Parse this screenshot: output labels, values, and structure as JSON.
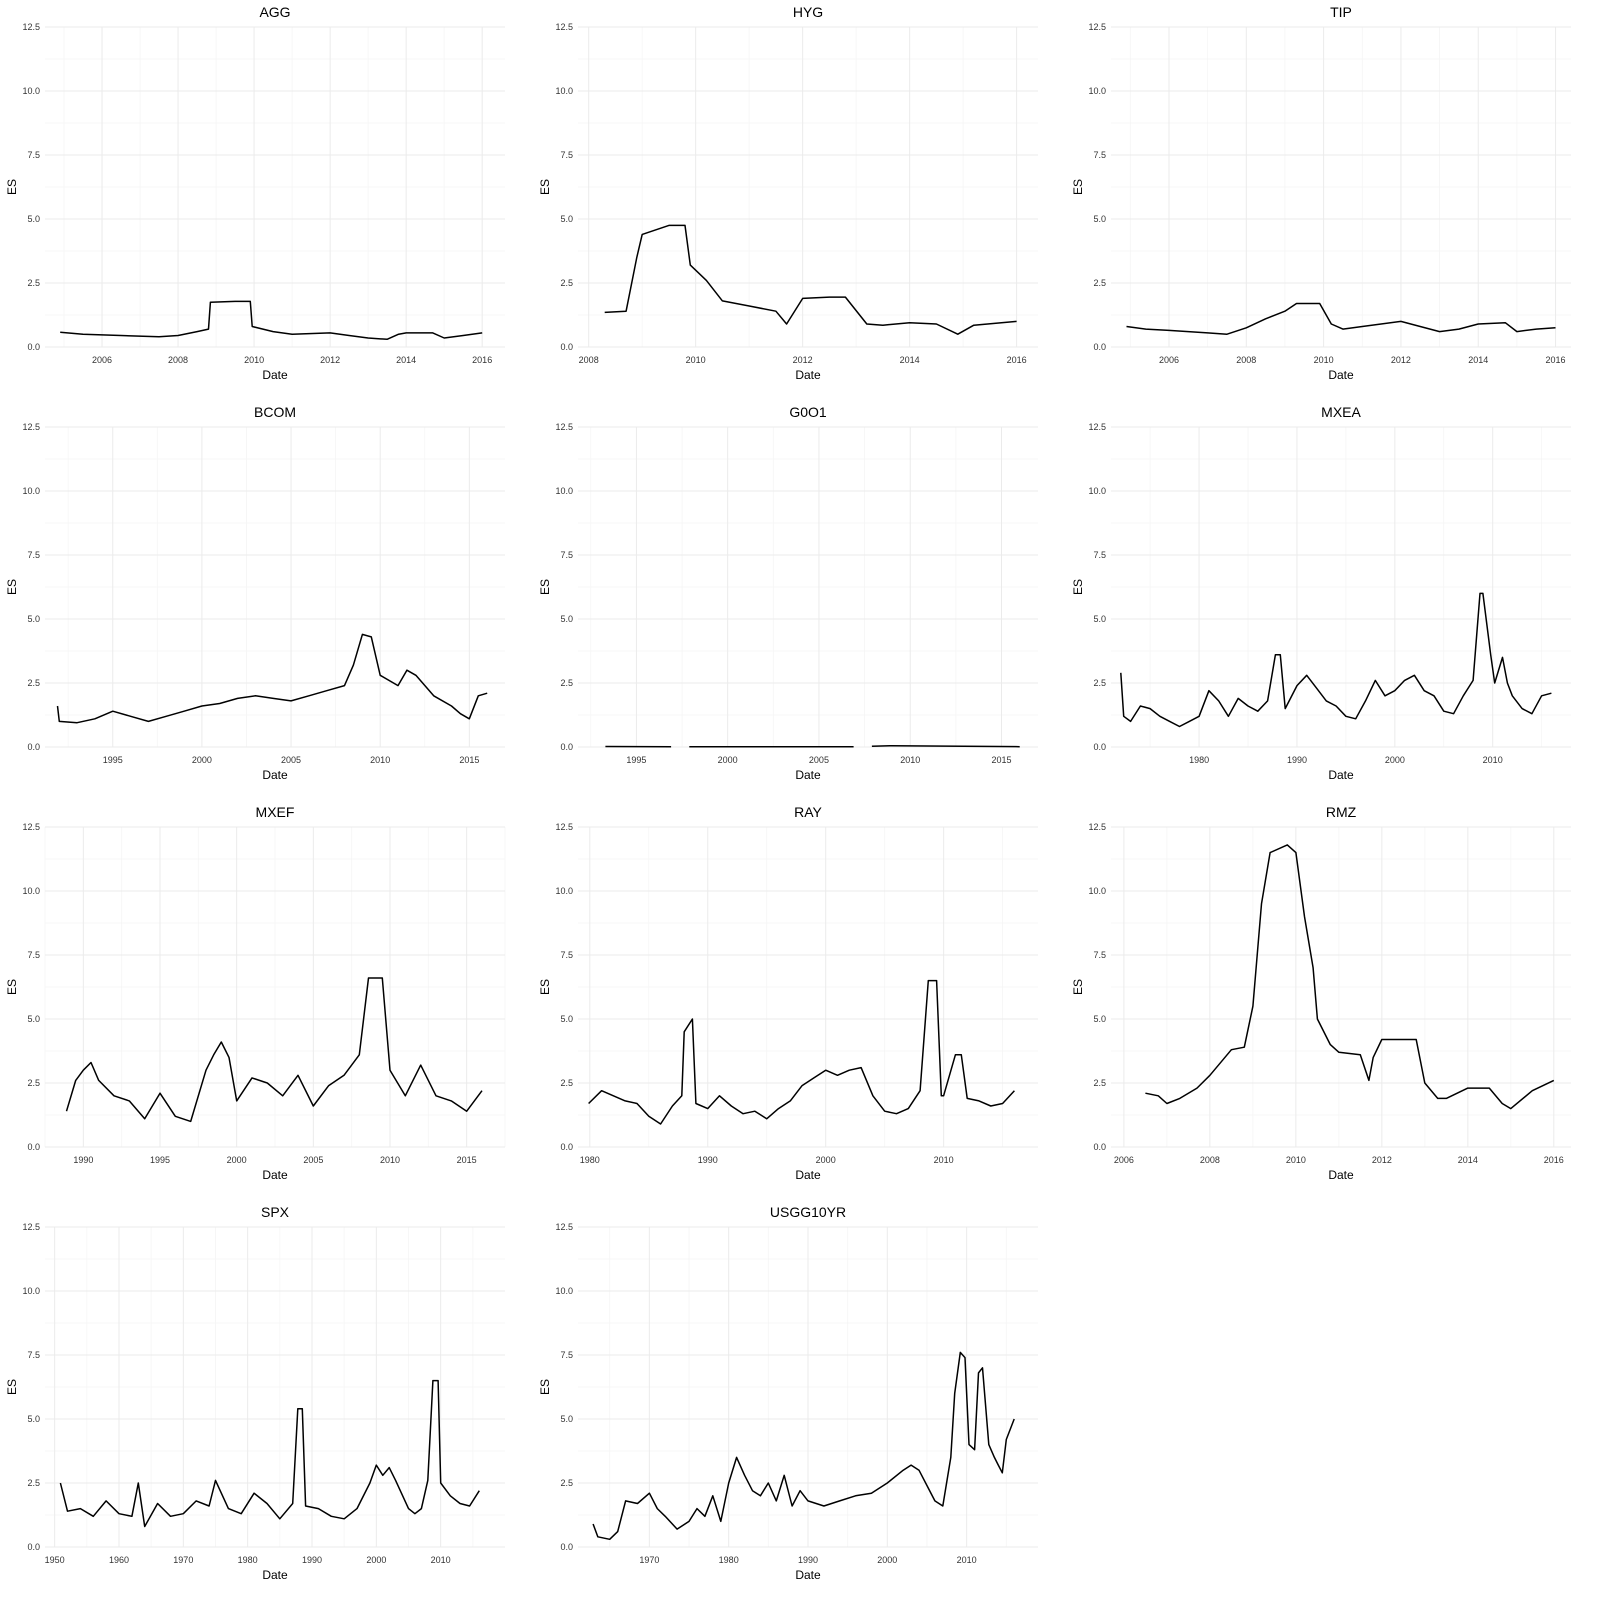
{
  "chart_data": [
    {
      "type": "line",
      "title": "AGG",
      "xlabel": "Date",
      "ylabel": "ES",
      "xlim": [
        2004.5,
        2016.6
      ],
      "ylim": [
        0,
        12.5
      ],
      "xticks": [
        2006,
        2008,
        2010,
        2012,
        2014,
        2016
      ],
      "yticks": [
        0.0,
        2.5,
        5.0,
        7.5,
        10.0,
        12.5
      ],
      "series": [
        {
          "x": [
            2004.9,
            2005.5,
            2006.5,
            2007.5,
            2008.0,
            2008.5,
            2008.8,
            2008.85,
            2009.5,
            2009.9,
            2009.95,
            2010.5,
            2011.0,
            2012.0,
            2012.5,
            2013.0,
            2013.5,
            2013.8,
            2014.0,
            2014.7,
            2015.0,
            2015.5,
            2016.0
          ],
          "y": [
            0.58,
            0.5,
            0.45,
            0.4,
            0.45,
            0.6,
            0.7,
            1.75,
            1.78,
            1.78,
            0.8,
            0.6,
            0.5,
            0.55,
            0.45,
            0.35,
            0.3,
            0.5,
            0.55,
            0.55,
            0.35,
            0.45,
            0.55
          ]
        }
      ]
    },
    {
      "type": "line",
      "title": "HYG",
      "xlabel": "Date",
      "ylabel": "ES",
      "xlim": [
        2007.8,
        2016.4
      ],
      "ylim": [
        0,
        12.5
      ],
      "xticks": [
        2008,
        2010,
        2012,
        2014,
        2016
      ],
      "yticks": [
        0.0,
        2.5,
        5.0,
        7.5,
        10.0,
        12.5
      ],
      "series": [
        {
          "x": [
            2008.3,
            2008.7,
            2008.9,
            2009.0,
            2009.5,
            2009.8,
            2009.9,
            2010.2,
            2010.5,
            2011.0,
            2011.5,
            2011.7,
            2012.0,
            2012.5,
            2012.8,
            2013.2,
            2013.5,
            2014.0,
            2014.5,
            2014.9,
            2015.2,
            2016.0
          ],
          "y": [
            1.35,
            1.4,
            3.5,
            4.4,
            4.75,
            4.75,
            3.2,
            2.6,
            1.8,
            1.6,
            1.4,
            0.9,
            1.9,
            1.95,
            1.95,
            0.9,
            0.85,
            0.95,
            0.9,
            0.5,
            0.85,
            1.0
          ]
        }
      ]
    },
    {
      "type": "line",
      "title": "TIP",
      "xlabel": "Date",
      "ylabel": "ES",
      "xlim": [
        2004.5,
        2016.4
      ],
      "ylim": [
        0,
        12.5
      ],
      "xticks": [
        2006,
        2008,
        2010,
        2012,
        2014,
        2016
      ],
      "yticks": [
        0.0,
        2.5,
        5.0,
        7.5,
        10.0,
        12.5
      ],
      "series": [
        {
          "x": [
            2004.9,
            2005.4,
            2006.0,
            2007.0,
            2007.5,
            2008.0,
            2008.5,
            2009.0,
            2009.3,
            2009.9,
            2010.2,
            2010.5,
            2011.0,
            2012.0,
            2012.5,
            2013.0,
            2013.5,
            2014.0,
            2014.7,
            2015.0,
            2015.5,
            2016.0
          ],
          "y": [
            0.8,
            0.7,
            0.65,
            0.55,
            0.5,
            0.75,
            1.1,
            1.4,
            1.7,
            1.7,
            0.9,
            0.7,
            0.8,
            1.0,
            0.8,
            0.6,
            0.7,
            0.9,
            0.95,
            0.6,
            0.7,
            0.75
          ]
        }
      ]
    },
    {
      "type": "line",
      "title": "BCOM",
      "xlabel": "Date",
      "ylabel": "ES",
      "xlim": [
        1991.2,
        2017.0
      ],
      "ylim": [
        0,
        12.5
      ],
      "xticks": [
        1995,
        2000,
        2005,
        2010,
        2015
      ],
      "yticks": [
        0.0,
        2.5,
        5.0,
        7.5,
        10.0,
        12.5
      ],
      "series": [
        {
          "x": [
            1991.9,
            1992.0,
            1993.0,
            1994.0,
            1995.0,
            1996.0,
            1997.0,
            1998.0,
            1999.0,
            2000.0,
            2001.0,
            2002.0,
            2003.0,
            2004.0,
            2005.0,
            2006.0,
            2007.0,
            2008.0,
            2008.5,
            2009.0,
            2009.5,
            2010.0,
            2011.0,
            2011.5,
            2012.0,
            2013.0,
            2014.0,
            2014.5,
            2015.0,
            2015.5,
            2016.0
          ],
          "y": [
            1.6,
            1.0,
            0.95,
            1.1,
            1.4,
            1.2,
            1.0,
            1.2,
            1.4,
            1.6,
            1.7,
            1.9,
            2.0,
            1.9,
            1.8,
            2.0,
            2.2,
            2.4,
            3.2,
            4.4,
            4.3,
            2.8,
            2.4,
            3.0,
            2.8,
            2.0,
            1.6,
            1.3,
            1.1,
            2.0,
            2.1
          ]
        }
      ]
    },
    {
      "type": "line",
      "title": "G0O1",
      "xlabel": "Date",
      "ylabel": "ES",
      "xlim": [
        1991.8,
        2017.0
      ],
      "ylim": [
        0,
        12.5
      ],
      "xticks": [
        1995,
        2000,
        2005,
        2010,
        2015
      ],
      "yticks": [
        0.0,
        2.5,
        5.0,
        7.5,
        10.0,
        12.5
      ],
      "series": [
        {
          "x": [
            1993.3,
            1996.9,
            null,
            1997.9,
            2006.9,
            null,
            2007.9,
            2009.0,
            2016.0
          ],
          "y": [
            0.02,
            0.01,
            null,
            0.01,
            0.01,
            null,
            0.03,
            0.05,
            0.01
          ]
        }
      ]
    },
    {
      "type": "line",
      "title": "MXEA",
      "xlabel": "Date",
      "ylabel": "ES",
      "xlim": [
        1971.0,
        2018.0
      ],
      "ylim": [
        0,
        12.5
      ],
      "xticks": [
        1980,
        1990,
        2000,
        2010
      ],
      "yticks": [
        0.0,
        2.5,
        5.0,
        7.5,
        10.0,
        12.5
      ],
      "series": [
        {
          "x": [
            1972.0,
            1972.3,
            1973.0,
            1974.0,
            1975.0,
            1976.0,
            1977.0,
            1978.0,
            1979.0,
            1980.0,
            1981.0,
            1982.0,
            1983.0,
            1984.0,
            1985.0,
            1986.0,
            1987.0,
            1987.8,
            1988.3,
            1988.8,
            1990.0,
            1991.0,
            1992.0,
            1993.0,
            1994.0,
            1995.0,
            1996.0,
            1997.0,
            1998.0,
            1999.0,
            2000.0,
            2001.0,
            2002.0,
            2003.0,
            2004.0,
            2005.0,
            2006.0,
            2007.0,
            2008.0,
            2008.7,
            2009.0,
            2009.8,
            2010.2,
            2011.0,
            2011.5,
            2012.0,
            2013.0,
            2014.0,
            2015.0,
            2016.0
          ],
          "y": [
            2.9,
            1.2,
            1.0,
            1.6,
            1.5,
            1.2,
            1.0,
            0.8,
            1.0,
            1.2,
            2.2,
            1.8,
            1.2,
            1.9,
            1.6,
            1.4,
            1.8,
            3.6,
            3.6,
            1.5,
            2.4,
            2.8,
            2.3,
            1.8,
            1.6,
            1.2,
            1.1,
            1.8,
            2.6,
            2.0,
            2.2,
            2.6,
            2.8,
            2.2,
            2.0,
            1.4,
            1.3,
            2.0,
            2.6,
            6.0,
            6.0,
            3.6,
            2.5,
            3.5,
            2.5,
            2.0,
            1.5,
            1.3,
            2.0,
            2.1
          ]
        }
      ]
    },
    {
      "type": "line",
      "title": "MXEF",
      "xlabel": "Date",
      "ylabel": "ES",
      "xlim": [
        1987.5,
        2017.5
      ],
      "ylim": [
        0,
        12.5
      ],
      "xticks": [
        1990,
        1995,
        2000,
        2005,
        2010,
        2015
      ],
      "yticks": [
        0.0,
        2.5,
        5.0,
        7.5,
        10.0,
        12.5
      ],
      "series": [
        {
          "x": [
            1988.9,
            1989.5,
            1990.0,
            1990.5,
            1991.0,
            1992.0,
            1993.0,
            1994.0,
            1995.0,
            1996.0,
            1997.0,
            1998.0,
            1998.5,
            1999.0,
            1999.5,
            2000.0,
            2001.0,
            2002.0,
            2003.0,
            2004.0,
            2005.0,
            2006.0,
            2007.0,
            2008.0,
            2008.6,
            2009.5,
            2010.0,
            2011.0,
            2012.0,
            2013.0,
            2014.0,
            2015.0,
            2016.0
          ],
          "y": [
            1.4,
            2.6,
            3.0,
            3.3,
            2.6,
            2.0,
            1.8,
            1.1,
            2.1,
            1.2,
            1.0,
            3.0,
            3.6,
            4.1,
            3.5,
            1.8,
            2.7,
            2.5,
            2.0,
            2.8,
            1.6,
            2.4,
            2.8,
            3.6,
            6.6,
            6.6,
            3.0,
            2.0,
            3.2,
            2.0,
            1.8,
            1.4,
            2.2
          ]
        }
      ]
    },
    {
      "type": "line",
      "title": "RAY",
      "xlabel": "Date",
      "ylabel": "ES",
      "xlim": [
        1979.0,
        2018.0
      ],
      "ylim": [
        0,
        12.5
      ],
      "xticks": [
        1980,
        1990,
        2000,
        2010
      ],
      "yticks": [
        0.0,
        2.5,
        5.0,
        7.5,
        10.0,
        12.5
      ],
      "series": [
        {
          "x": [
            1979.9,
            1981.0,
            1982.0,
            1983.0,
            1984.0,
            1985.0,
            1986.0,
            1987.0,
            1987.8,
            1988.0,
            1988.7,
            1989.0,
            1990.0,
            1991.0,
            1992.0,
            1993.0,
            1994.0,
            1995.0,
            1996.0,
            1997.0,
            1998.0,
            1999.0,
            2000.0,
            2001.0,
            2002.0,
            2003.0,
            2004.0,
            2005.0,
            2006.0,
            2007.0,
            2008.0,
            2008.7,
            2009.4,
            2009.8,
            2010.0,
            2011.0,
            2011.5,
            2012.0,
            2013.0,
            2014.0,
            2015.0,
            2016.0
          ],
          "y": [
            1.7,
            2.2,
            2.0,
            1.8,
            1.7,
            1.2,
            0.9,
            1.6,
            2.0,
            4.5,
            5.0,
            1.7,
            1.5,
            2.0,
            1.6,
            1.3,
            1.4,
            1.1,
            1.5,
            1.8,
            2.4,
            2.7,
            3.0,
            2.8,
            3.0,
            3.1,
            2.0,
            1.4,
            1.3,
            1.5,
            2.2,
            6.5,
            6.5,
            2.0,
            2.0,
            3.6,
            3.6,
            1.9,
            1.8,
            1.6,
            1.7,
            2.2
          ]
        }
      ]
    },
    {
      "type": "line",
      "title": "RMZ",
      "xlabel": "Date",
      "ylabel": "ES",
      "xlim": [
        2005.7,
        2016.4
      ],
      "ylim": [
        0,
        12.5
      ],
      "xticks": [
        2006,
        2008,
        2010,
        2012,
        2014,
        2016
      ],
      "yticks": [
        0.0,
        2.5,
        5.0,
        7.5,
        10.0,
        12.5
      ],
      "series": [
        {
          "x": [
            2006.5,
            2006.8,
            2007.0,
            2007.3,
            2007.7,
            2008.0,
            2008.5,
            2008.8,
            2009.0,
            2009.2,
            2009.4,
            2009.8,
            2010.0,
            2010.2,
            2010.4,
            2010.5,
            2010.8,
            2011.0,
            2011.5,
            2011.7,
            2011.8,
            2012.0,
            2012.5,
            2012.8,
            2013.0,
            2013.3,
            2013.5,
            2014.0,
            2014.5,
            2014.8,
            2015.0,
            2015.5,
            2016.0
          ],
          "y": [
            2.1,
            2.0,
            1.7,
            1.9,
            2.3,
            2.8,
            3.8,
            3.9,
            5.5,
            9.5,
            11.5,
            11.8,
            11.5,
            9.0,
            7.0,
            5.0,
            4.0,
            3.7,
            3.6,
            2.6,
            3.5,
            4.2,
            4.2,
            4.2,
            2.5,
            1.9,
            1.9,
            2.3,
            2.3,
            1.7,
            1.5,
            2.2,
            2.6
          ]
        }
      ]
    },
    {
      "type": "line",
      "title": "SPX",
      "xlabel": "Date",
      "ylabel": "ES",
      "xlim": [
        1948.5,
        2020.0
      ],
      "ylim": [
        0,
        12.5
      ],
      "xticks": [
        1950,
        1960,
        1970,
        1980,
        1990,
        2000,
        2010
      ],
      "yticks": [
        0.0,
        2.5,
        5.0,
        7.5,
        10.0,
        12.5
      ],
      "series": [
        {
          "x": [
            1950.9,
            1952.0,
            1954.0,
            1956.0,
            1958.0,
            1960.0,
            1962.0,
            1963.0,
            1964.0,
            1966.0,
            1968.0,
            1970.0,
            1972.0,
            1974.0,
            1975.0,
            1977.0,
            1979.0,
            1981.0,
            1983.0,
            1985.0,
            1987.0,
            1987.8,
            1988.5,
            1989.0,
            1991.0,
            1993.0,
            1995.0,
            1997.0,
            1999.0,
            2000.0,
            2001.0,
            2002.0,
            2003.0,
            2005.0,
            2006.0,
            2007.0,
            2008.0,
            2008.8,
            2009.6,
            2010.0,
            2011.5,
            2013.0,
            2014.5,
            2016.0
          ],
          "y": [
            2.5,
            1.4,
            1.5,
            1.2,
            1.8,
            1.3,
            1.2,
            2.5,
            0.8,
            1.7,
            1.2,
            1.3,
            1.8,
            1.6,
            2.6,
            1.5,
            1.3,
            2.1,
            1.7,
            1.1,
            1.7,
            5.4,
            5.4,
            1.6,
            1.5,
            1.2,
            1.1,
            1.5,
            2.5,
            3.2,
            2.8,
            3.1,
            2.6,
            1.5,
            1.3,
            1.5,
            2.6,
            6.5,
            6.5,
            2.5,
            2.0,
            1.7,
            1.6,
            2.2
          ]
        }
      ]
    },
    {
      "type": "line",
      "title": "USGG10YR",
      "xlabel": "Date",
      "ylabel": "ES",
      "xlim": [
        1961.0,
        2019.0
      ],
      "ylim": [
        0,
        12.5
      ],
      "xticks": [
        1970,
        1980,
        1990,
        2000,
        2010
      ],
      "yticks": [
        0.0,
        2.5,
        5.0,
        7.5,
        10.0,
        12.5
      ],
      "series": [
        {
          "x": [
            1962.9,
            1963.5,
            1965.0,
            1966.0,
            1967.0,
            1968.5,
            1970.0,
            1971.0,
            1972.0,
            1973.5,
            1975.0,
            1976.0,
            1977.0,
            1978.0,
            1979.0,
            1980.0,
            1981.0,
            1982.0,
            1983.0,
            1984.0,
            1985.0,
            1986.0,
            1987.0,
            1988.0,
            1989.0,
            1990.0,
            1992.0,
            1994.0,
            1996.0,
            1998.0,
            2000.0,
            2002.0,
            2003.0,
            2004.0,
            2005.0,
            2006.0,
            2007.0,
            2008.0,
            2008.5,
            2009.2,
            2009.8,
            2010.3,
            2011.0,
            2011.5,
            2012.0,
            2012.8,
            2013.5,
            2014.0,
            2014.5,
            2015.0,
            2016.0
          ],
          "y": [
            0.9,
            0.4,
            0.3,
            0.6,
            1.8,
            1.7,
            2.1,
            1.5,
            1.2,
            0.7,
            1.0,
            1.5,
            1.2,
            2.0,
            1.0,
            2.5,
            3.5,
            2.8,
            2.2,
            2.0,
            2.5,
            1.8,
            2.8,
            1.6,
            2.2,
            1.8,
            1.6,
            1.8,
            2.0,
            2.1,
            2.5,
            3.0,
            3.2,
            3.0,
            2.4,
            1.8,
            1.6,
            3.5,
            6.0,
            7.6,
            7.4,
            4.0,
            3.8,
            6.8,
            7.0,
            4.0,
            3.5,
            3.2,
            2.9,
            4.2,
            5.0
          ]
        }
      ]
    }
  ]
}
